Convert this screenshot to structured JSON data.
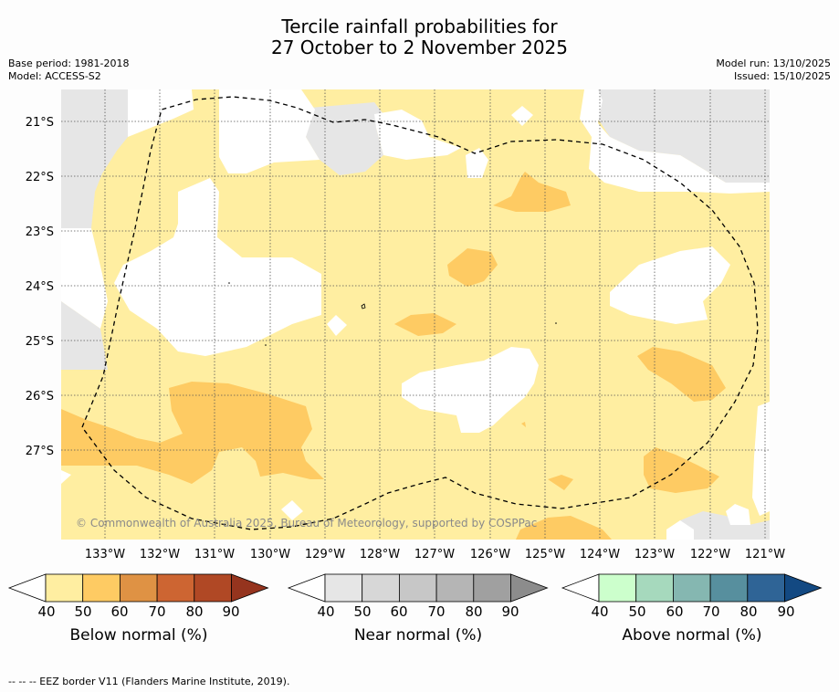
{
  "title": {
    "line1": "Tercile rainfall probabilities for",
    "line2": "27 October to 2 November 2025"
  },
  "meta": {
    "base_period": "Base period: 1981-2018",
    "model": "Model: ACCESS-S2",
    "model_run": "Model run: 13/10/2025",
    "issued": "Issued: 15/10/2025"
  },
  "map": {
    "copyright": "© Commonwealth of Australia 2025, Bureau of Meteorology, supported by COSPPac",
    "lat_labels": [
      "21°S",
      "22°S",
      "23°S",
      "24°S",
      "25°S",
      "26°S",
      "27°S"
    ],
    "lon_labels": [
      "133°W",
      "132°W",
      "131°W",
      "130°W",
      "129°W",
      "128°W",
      "127°W",
      "126°W",
      "125°W",
      "124°W",
      "123°W",
      "122°W",
      "121°W"
    ]
  },
  "legend": {
    "tick_values": [
      "40",
      "50",
      "60",
      "70",
      "80",
      "90"
    ],
    "below": {
      "label": "Below normal (%)",
      "colors": [
        "#ffeea1",
        "#fecb63",
        "#df9244",
        "#cd6532",
        "#b04825",
        "#95341e"
      ]
    },
    "near": {
      "label": "Near normal (%)",
      "colors": [
        "#e6e6e6",
        "#d7d7d7",
        "#c7c7c7",
        "#b5b5b5",
        "#a0a0a0",
        "#8c8c8c"
      ]
    },
    "above": {
      "label": "Above normal (%)",
      "colors": [
        "#ccffcc",
        "#a6d9bd",
        "#85b7b1",
        "#578f9e",
        "#2f6496",
        "#134982"
      ]
    }
  },
  "footnote": "--  --  -- EEZ border V11 (Flanders Marine Institute, 2019)."
}
